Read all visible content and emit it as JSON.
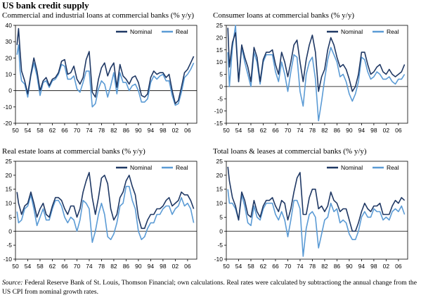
{
  "page": {
    "title": "US bank credit supply",
    "source_label": "Source:",
    "source_text": " Federal Reserve Bank of St. Louis, Thomson Financial; own calculations. Real rates were calculated by subtractiong the annual change from the US CPI from nominal growth rates."
  },
  "colors": {
    "nominal": "#1f3864",
    "real": "#5b9bd5",
    "axis": "#000000"
  },
  "chart_data": [
    {
      "type": "line",
      "title": "Commercial and industrial loans at commercial banks (% y/y)",
      "xticks": [
        "50",
        "54",
        "58",
        "62",
        "66",
        "70",
        "74",
        "78",
        "82",
        "86",
        "90",
        "94",
        "98",
        "02",
        "06"
      ],
      "xlim": [
        1950,
        2009
      ],
      "ylim": [
        -20,
        40
      ],
      "yticks": [
        40,
        30,
        20,
        10,
        0,
        -10,
        -20
      ],
      "legend": "top-right",
      "series": [
        {
          "name": "Nominal",
          "color": "#1f3864",
          "x": [
            1950.5,
            1951,
            1951.5,
            1952,
            1953,
            1954,
            1955,
            1956,
            1957,
            1958,
            1959,
            1960,
            1961,
            1962,
            1963,
            1964,
            1965,
            1966,
            1967,
            1968,
            1969,
            1970,
            1971,
            1972,
            1973,
            1974,
            1975,
            1976,
            1977,
            1978,
            1979,
            1980,
            1981,
            1982,
            1983,
            1984,
            1985,
            1986,
            1987,
            1988,
            1989,
            1990,
            1991,
            1992,
            1993,
            1994,
            1995,
            1996,
            1997,
            1998,
            1999,
            2000,
            2001,
            2002,
            2003,
            2004,
            2005,
            2006,
            2007,
            2008
          ],
          "y": [
            28,
            38,
            24,
            12,
            6,
            -2,
            10,
            20,
            12,
            0,
            6,
            8,
            3,
            7,
            8,
            11,
            18,
            19,
            10,
            11,
            15,
            7,
            4,
            8,
            19,
            24,
            -1,
            -4,
            7,
            14,
            17,
            9,
            14,
            17,
            2,
            16,
            9,
            7,
            4,
            8,
            9,
            5,
            -3,
            -4,
            -2,
            8,
            12,
            10,
            11,
            11,
            8,
            10,
            0,
            -8,
            -6,
            2,
            11,
            13,
            17,
            21
          ]
        },
        {
          "name": "Real",
          "color": "#5b9bd5",
          "x": [
            1950.5,
            1951,
            1951.5,
            1952,
            1953,
            1954,
            1955,
            1956,
            1957,
            1958,
            1959,
            1960,
            1961,
            1962,
            1963,
            1964,
            1965,
            1966,
            1967,
            1968,
            1969,
            1970,
            1971,
            1972,
            1973,
            1974,
            1975,
            1976,
            1977,
            1978,
            1979,
            1980,
            1981,
            1982,
            1983,
            1984,
            1985,
            1986,
            1987,
            1988,
            1989,
            1990,
            1991,
            1992,
            1993,
            1994,
            1995,
            1996,
            1997,
            1998,
            1999,
            2000,
            2001,
            2002,
            2003,
            2004,
            2005,
            2006,
            2007,
            2008
          ],
          "y": [
            22,
            28,
            12,
            6,
            4,
            -4,
            9,
            17,
            9,
            -3,
            5,
            6,
            2,
            6,
            7,
            10,
            16,
            15,
            7,
            7,
            9,
            1,
            -1,
            5,
            12,
            12,
            -10,
            -8,
            1,
            6,
            4,
            -4,
            3,
            11,
            -2,
            11,
            5,
            5,
            0,
            3,
            4,
            0,
            -7,
            -7,
            -5,
            5,
            9,
            7,
            9,
            10,
            6,
            6,
            -3,
            -9,
            -8,
            -1,
            8,
            10,
            13,
            17
          ]
        }
      ]
    },
    {
      "type": "line",
      "title": "Consumer loans at commercial banks (% y/y)",
      "xticks": [
        "50",
        "54",
        "58",
        "62",
        "66",
        "70",
        "74",
        "78",
        "82",
        "86",
        "90",
        "94",
        "98",
        "02",
        "06"
      ],
      "xlim": [
        1950,
        2009
      ],
      "ylim": [
        -15,
        25
      ],
      "yticks": [
        25,
        20,
        15,
        10,
        5,
        0,
        -5,
        -10,
        -15
      ],
      "legend": "top-right",
      "series": [
        {
          "name": "Nominal",
          "color": "#1f3864",
          "x": [
            1950.5,
            1951,
            1952,
            1953,
            1954,
            1955,
            1956,
            1957,
            1958,
            1959,
            1960,
            1961,
            1962,
            1963,
            1964,
            1965,
            1966,
            1967,
            1968,
            1969,
            1970,
            1971,
            1972,
            1973,
            1974,
            1975,
            1976,
            1977,
            1978,
            1979,
            1980,
            1981,
            1982,
            1983,
            1984,
            1985,
            1986,
            1987,
            1988,
            1989,
            1990,
            1991,
            1992,
            1993,
            1994,
            1995,
            1996,
            1997,
            1998,
            1999,
            2000,
            2001,
            2002,
            2003,
            2004,
            2005,
            2006,
            2007,
            2008
          ],
          "y": [
            24,
            8,
            18,
            22,
            2,
            17,
            12,
            8,
            2,
            16,
            12,
            2,
            11,
            14,
            14,
            15,
            9,
            5,
            14,
            10,
            4,
            10,
            17,
            19,
            10,
            2,
            11,
            17,
            21,
            14,
            -2,
            4,
            7,
            15,
            20,
            17,
            12,
            8,
            9,
            7,
            3,
            -2,
            0,
            5,
            14,
            14,
            9,
            5,
            6,
            8,
            9,
            6,
            5,
            7,
            5,
            4,
            5,
            6,
            9
          ]
        },
        {
          "name": "Real",
          "color": "#5b9bd5",
          "x": [
            1950.5,
            1951,
            1952,
            1953,
            1954,
            1955,
            1956,
            1957,
            1958,
            1959,
            1960,
            1961,
            1962,
            1963,
            1964,
            1965,
            1966,
            1967,
            1968,
            1969,
            1970,
            1971,
            1972,
            1973,
            1974,
            1975,
            1976,
            1977,
            1978,
            1979,
            1980,
            1981,
            1982,
            1983,
            1984,
            1985,
            1986,
            1987,
            1988,
            1989,
            1990,
            1991,
            1992,
            1993,
            1994,
            1995,
            1996,
            1997,
            1998,
            1999,
            2000,
            2001,
            2002,
            2003,
            2004,
            2005,
            2006,
            2007,
            2008
          ],
          "y": [
            14,
            0,
            16,
            25,
            2,
            16,
            10,
            5,
            0,
            14,
            10,
            1,
            10,
            13,
            13,
            13,
            6,
            2,
            10,
            5,
            -2,
            6,
            13,
            12,
            -2,
            -8,
            5,
            10,
            12,
            3,
            -14,
            -6,
            3,
            11,
            16,
            13,
            10,
            4,
            5,
            2,
            -3,
            -6,
            -3,
            2,
            12,
            11,
            6,
            3,
            4,
            6,
            5,
            3,
            3,
            4,
            2,
            1,
            3,
            3,
            5
          ]
        }
      ]
    },
    {
      "type": "line",
      "title": "Real estate loans at commercial banks (% y/y)",
      "xticks": [
        "50",
        "54",
        "58",
        "62",
        "66",
        "70",
        "74",
        "78",
        "82",
        "86",
        "90",
        "94",
        "98",
        "02",
        "06"
      ],
      "xlim": [
        1950,
        2009
      ],
      "ylim": [
        -10,
        25
      ],
      "yticks": [
        25,
        20,
        15,
        10,
        5,
        0,
        -5,
        -10
      ],
      "legend": "top-right",
      "series": [
        {
          "name": "Nominal",
          "color": "#1f3864",
          "x": [
            1950.5,
            1951,
            1952,
            1953,
            1954,
            1955,
            1956,
            1957,
            1958,
            1959,
            1960,
            1961,
            1962,
            1963,
            1964,
            1965,
            1966,
            1967,
            1968,
            1969,
            1970,
            1971,
            1972,
            1973,
            1974,
            1975,
            1976,
            1977,
            1978,
            1979,
            1980,
            1981,
            1982,
            1983,
            1984,
            1985,
            1986,
            1987,
            1988,
            1989,
            1990,
            1991,
            1992,
            1993,
            1994,
            1995,
            1996,
            1997,
            1998,
            1999,
            2000,
            2001,
            2002,
            2003,
            2004,
            2005,
            2006,
            2007,
            2008
          ],
          "y": [
            14,
            10,
            6,
            9,
            10,
            14,
            10,
            5,
            8,
            10,
            6,
            5,
            9,
            12,
            12,
            11,
            8,
            6,
            9,
            9,
            5,
            8,
            14,
            18,
            21,
            12,
            6,
            12,
            19,
            20,
            17,
            8,
            4,
            6,
            12,
            14,
            18,
            20,
            16,
            13,
            5,
            1,
            1,
            4,
            6,
            6,
            8,
            8,
            9,
            11,
            12,
            9,
            10,
            11,
            14,
            13,
            13,
            11,
            8
          ]
        },
        {
          "name": "Real",
          "color": "#5b9bd5",
          "x": [
            1950.5,
            1951,
            1952,
            1953,
            1954,
            1955,
            1956,
            1957,
            1958,
            1959,
            1960,
            1961,
            1962,
            1963,
            1964,
            1965,
            1966,
            1967,
            1968,
            1969,
            1970,
            1971,
            1972,
            1973,
            1974,
            1975,
            1976,
            1977,
            1978,
            1979,
            1980,
            1981,
            1982,
            1983,
            1984,
            1985,
            1986,
            1987,
            1988,
            1989,
            1990,
            1991,
            1992,
            1993,
            1994,
            1995,
            1996,
            1997,
            1998,
            1999,
            2000,
            2001,
            2002,
            2003,
            2004,
            2005,
            2006,
            2007,
            2008
          ],
          "y": [
            7,
            3,
            4,
            8,
            9,
            13,
            8,
            2,
            5,
            8,
            4,
            4,
            8,
            11,
            11,
            9,
            5,
            3,
            5,
            4,
            0,
            4,
            11,
            10,
            8,
            -4,
            0,
            6,
            10,
            6,
            -2,
            -3,
            -1,
            3,
            9,
            10,
            16,
            16,
            11,
            8,
            0,
            -3,
            -2,
            1,
            3,
            3,
            6,
            6,
            8,
            9,
            9,
            6,
            8,
            9,
            12,
            9,
            10,
            8,
            3
          ]
        }
      ]
    },
    {
      "type": "line",
      "title": "Total loans & leases at commercial banks (% y/y)",
      "xticks": [
        "50",
        "54",
        "58",
        "62",
        "66",
        "70",
        "74",
        "78",
        "82",
        "86",
        "90",
        "94",
        "98",
        "02",
        "06"
      ],
      "xlim": [
        1950,
        2009
      ],
      "ylim": [
        -10,
        25
      ],
      "yticks": [
        25,
        20,
        15,
        10,
        5,
        0,
        -5,
        -10
      ],
      "legend": "top-right",
      "series": [
        {
          "name": "Nominal",
          "color": "#1f3864",
          "x": [
            1950.5,
            1951,
            1952,
            1953,
            1954,
            1955,
            1956,
            1957,
            1958,
            1959,
            1960,
            1961,
            1962,
            1963,
            1964,
            1965,
            1966,
            1967,
            1968,
            1969,
            1970,
            1971,
            1972,
            1973,
            1974,
            1975,
            1976,
            1977,
            1978,
            1979,
            1980,
            1981,
            1982,
            1983,
            1984,
            1985,
            1986,
            1987,
            1988,
            1989,
            1990,
            1991,
            1992,
            1993,
            1994,
            1995,
            1996,
            1997,
            1998,
            1999,
            2000,
            2001,
            2002,
            2003,
            2004,
            2005,
            2006,
            2007,
            2008
          ],
          "y": [
            23,
            18,
            12,
            9,
            4,
            14,
            11,
            6,
            5,
            11,
            7,
            5,
            9,
            11,
            11,
            12,
            9,
            7,
            11,
            10,
            4,
            8,
            14,
            19,
            21,
            6,
            6,
            12,
            15,
            15,
            8,
            9,
            7,
            9,
            14,
            11,
            10,
            7,
            8,
            8,
            4,
            0,
            0,
            3,
            7,
            10,
            8,
            7,
            9,
            9,
            10,
            6,
            6,
            6,
            9,
            11,
            10,
            12,
            11
          ]
        },
        {
          "name": "Real",
          "color": "#5b9bd5",
          "x": [
            1950.5,
            1951,
            1952,
            1953,
            1954,
            1955,
            1956,
            1957,
            1958,
            1959,
            1960,
            1961,
            1962,
            1963,
            1964,
            1965,
            1966,
            1967,
            1968,
            1969,
            1970,
            1971,
            1972,
            1973,
            1974,
            1975,
            1976,
            1977,
            1978,
            1979,
            1980,
            1981,
            1982,
            1983,
            1984,
            1985,
            1986,
            1987,
            1988,
            1989,
            1990,
            1991,
            1992,
            1993,
            1994,
            1995,
            1996,
            1997,
            1998,
            1999,
            2000,
            2001,
            2002,
            2003,
            2004,
            2005,
            2006,
            2007,
            2008
          ],
          "y": [
            15,
            10,
            10,
            8,
            4,
            13,
            9,
            3,
            2,
            9,
            5,
            4,
            8,
            10,
            10,
            10,
            6,
            4,
            7,
            4,
            -2,
            4,
            11,
            11,
            8,
            -9,
            1,
            6,
            7,
            5,
            -6,
            -1,
            4,
            5,
            10,
            7,
            8,
            3,
            4,
            3,
            -1,
            -3,
            -3,
            0,
            5,
            7,
            5,
            5,
            8,
            7,
            7,
            4,
            5,
            4,
            7,
            8,
            7,
            9,
            6
          ]
        }
      ]
    }
  ]
}
